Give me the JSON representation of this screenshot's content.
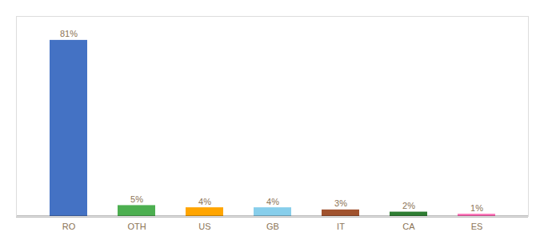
{
  "chart_data": {
    "type": "bar",
    "categories": [
      "RO",
      "OTH",
      "US",
      "GB",
      "IT",
      "CA",
      "ES"
    ],
    "values": [
      81,
      5,
      4,
      4,
      3,
      2,
      1
    ],
    "value_labels": [
      "81%",
      "5%",
      "4%",
      "4%",
      "3%",
      "2%",
      "1%"
    ],
    "colors": [
      "#4472C4",
      "#4CAF50",
      "#FFA500",
      "#87CEEB",
      "#A0522D",
      "#2E7D32",
      "#FF69B4"
    ],
    "ylim": [
      0,
      92
    ],
    "data_labels": true,
    "tick_labels": "x"
  }
}
